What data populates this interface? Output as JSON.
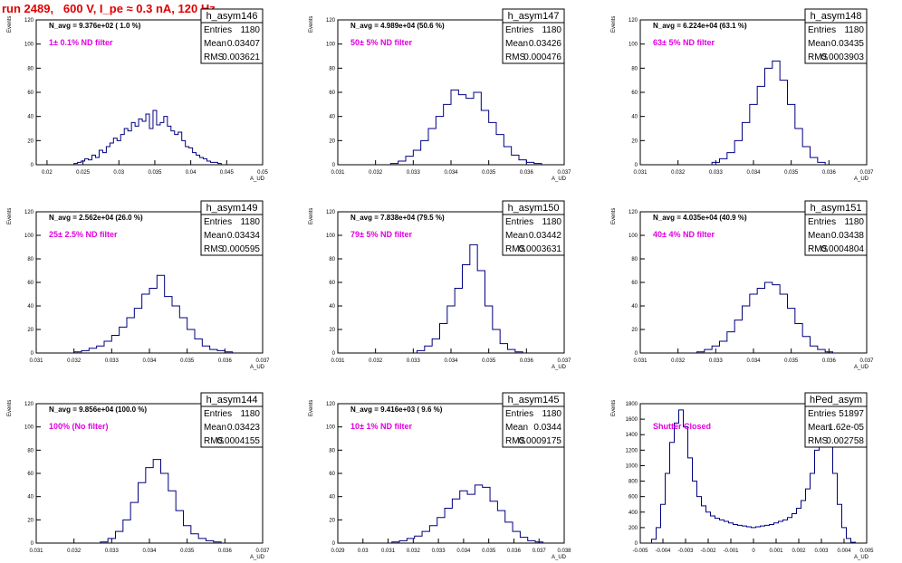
{
  "page_title": "run 2489,   600 V, I_pe ≈ 0.3 nA, 120 Hz",
  "colors": {
    "title": "#e00000",
    "histogram": "#000080",
    "annotation": "#e000e0",
    "frame": "#000000"
  },
  "chart_data": [
    {
      "type": "histogram",
      "name": "h_asym146",
      "navg": "N_avg = 9.376e+02 ( 1.0 %)",
      "filter": "1± 0.1% ND filter",
      "stats": {
        "entries_label": "Entries",
        "entries": "1180",
        "mean_label": "Mean",
        "mean": "0.03407",
        "rms_label": "RMS",
        "rms": "0.003621"
      },
      "xlim": [
        0.0185,
        0.05
      ],
      "ylim": [
        0,
        120
      ],
      "xlabel": "A_UD",
      "ylabel": "Events",
      "xticks": [
        "0.02",
        "0.025",
        "0.03",
        "0.035",
        "0.04",
        "0.045",
        "0.05"
      ],
      "yticks": [
        "0",
        "20",
        "40",
        "60",
        "80",
        "100",
        "120"
      ],
      "x": [
        0.024,
        0.0245,
        0.025,
        0.0255,
        0.026,
        0.0265,
        0.027,
        0.0275,
        0.028,
        0.0285,
        0.029,
        0.0295,
        0.03,
        0.0305,
        0.031,
        0.0315,
        0.032,
        0.0325,
        0.033,
        0.0335,
        0.034,
        0.0345,
        0.035,
        0.0355,
        0.036,
        0.0365,
        0.037,
        0.0375,
        0.038,
        0.0385,
        0.039,
        0.0395,
        0.04,
        0.0405,
        0.041,
        0.0415,
        0.042,
        0.0425,
        0.043,
        0.0435,
        0.044
      ],
      "y": [
        1,
        2,
        3,
        5,
        4,
        8,
        6,
        12,
        10,
        15,
        18,
        22,
        20,
        25,
        30,
        28,
        35,
        32,
        38,
        36,
        42,
        30,
        45,
        33,
        35,
        40,
        32,
        28,
        25,
        27,
        20,
        15,
        14,
        10,
        8,
        6,
        5,
        3,
        2,
        2,
        1
      ]
    },
    {
      "type": "histogram",
      "name": "h_asym147",
      "navg": "N_avg = 4.989e+04 (50.6 %)",
      "filter": "50± 5% ND filter",
      "stats": {
        "entries_label": "Entries",
        "entries": "1180",
        "mean_label": "Mean",
        "mean": "0.03426",
        "rms_label": "RMS",
        "rms": "0.000476"
      },
      "xlim": [
        0.031,
        0.037
      ],
      "ylim": [
        0,
        120
      ],
      "xlabel": "A_UD",
      "ylabel": "Events",
      "xticks": [
        "0.031",
        "0.032",
        "0.033",
        "0.034",
        "0.035",
        "0.036",
        "0.037"
      ],
      "yticks": [
        "0",
        "20",
        "40",
        "60",
        "80",
        "100",
        "120"
      ],
      "x": [
        0.0325,
        0.0327,
        0.0329,
        0.0331,
        0.0333,
        0.0335,
        0.0337,
        0.0339,
        0.0341,
        0.0343,
        0.0345,
        0.0347,
        0.0349,
        0.0351,
        0.0353,
        0.0355,
        0.0357,
        0.0359,
        0.0361,
        0.0363
      ],
      "y": [
        1,
        3,
        7,
        12,
        20,
        30,
        40,
        50,
        62,
        58,
        55,
        60,
        45,
        35,
        25,
        15,
        8,
        4,
        2,
        1
      ]
    },
    {
      "type": "histogram",
      "name": "h_asym148",
      "navg": "N_avg = 6.224e+04 (63.1 %)",
      "filter": "63± 5% ND filter",
      "stats": {
        "entries_label": "Entries",
        "entries": "1180",
        "mean_label": "Mean",
        "mean": "0.03435",
        "rms_label": "RMS",
        "rms": "0.0003903"
      },
      "xlim": [
        0.031,
        0.037
      ],
      "ylim": [
        0,
        120
      ],
      "xlabel": "A_UD",
      "ylabel": "Events",
      "xticks": [
        "0.031",
        "0.032",
        "0.033",
        "0.034",
        "0.035",
        "0.036",
        "0.037"
      ],
      "yticks": [
        "0",
        "20",
        "40",
        "60",
        "80",
        "100",
        "120"
      ],
      "x": [
        0.033,
        0.0332,
        0.0334,
        0.0336,
        0.0338,
        0.034,
        0.0342,
        0.0344,
        0.0346,
        0.0348,
        0.035,
        0.0352,
        0.0354,
        0.0356,
        0.0358
      ],
      "y": [
        2,
        5,
        10,
        20,
        35,
        50,
        65,
        80,
        86,
        70,
        50,
        30,
        15,
        6,
        2
      ]
    },
    {
      "type": "histogram",
      "name": "h_asym149",
      "navg": "N_avg = 2.562e+04 (26.0 %)",
      "filter": "25± 2.5% ND filter",
      "stats": {
        "entries_label": "Entries",
        "entries": "1180",
        "mean_label": "Mean",
        "mean": "0.03434",
        "rms_label": "RMS",
        "rms": "0.000595"
      },
      "xlim": [
        0.031,
        0.037
      ],
      "ylim": [
        0,
        120
      ],
      "xlabel": "A_UD",
      "ylabel": "Events",
      "xticks": [
        "0.031",
        "0.032",
        "0.033",
        "0.034",
        "0.035",
        "0.036",
        "0.037"
      ],
      "yticks": [
        "0",
        "20",
        "40",
        "60",
        "80",
        "100",
        "120"
      ],
      "x": [
        0.0321,
        0.0323,
        0.0325,
        0.0327,
        0.0329,
        0.0331,
        0.0333,
        0.0335,
        0.0337,
        0.0339,
        0.0341,
        0.0343,
        0.0345,
        0.0347,
        0.0349,
        0.0351,
        0.0353,
        0.0355,
        0.0357,
        0.0359,
        0.0361
      ],
      "y": [
        1,
        2,
        4,
        6,
        10,
        15,
        22,
        30,
        38,
        50,
        55,
        66,
        48,
        40,
        30,
        20,
        12,
        6,
        3,
        2,
        1
      ]
    },
    {
      "type": "histogram",
      "name": "h_asym150",
      "navg": "N_avg = 7.838e+04 (79.5 %)",
      "filter": "79± 5% ND filter",
      "stats": {
        "entries_label": "Entries",
        "entries": "1180",
        "mean_label": "Mean",
        "mean": "0.03442",
        "rms_label": "RMS",
        "rms": "0.0003631"
      },
      "xlim": [
        0.031,
        0.037
      ],
      "ylim": [
        0,
        120
      ],
      "xlabel": "A_UD",
      "ylabel": "Events",
      "xticks": [
        "0.031",
        "0.032",
        "0.033",
        "0.034",
        "0.035",
        "0.036",
        "0.037"
      ],
      "yticks": [
        "0",
        "20",
        "40",
        "60",
        "80",
        "100",
        "120"
      ],
      "x": [
        0.0332,
        0.0334,
        0.0336,
        0.0338,
        0.034,
        0.0342,
        0.0344,
        0.0346,
        0.0348,
        0.035,
        0.0352,
        0.0354,
        0.0356,
        0.0358
      ],
      "y": [
        2,
        6,
        12,
        25,
        40,
        55,
        75,
        92,
        70,
        40,
        20,
        8,
        3,
        1
      ]
    },
    {
      "type": "histogram",
      "name": "h_asym151",
      "navg": "N_avg = 4.035e+04 (40.9 %)",
      "filter": "40± 4% ND filter",
      "stats": {
        "entries_label": "Entries",
        "entries": "1180",
        "mean_label": "Mean",
        "mean": "0.03438",
        "rms_label": "RMS",
        "rms": "0.0004804"
      },
      "xlim": [
        0.031,
        0.037
      ],
      "ylim": [
        0,
        120
      ],
      "xlabel": "A_UD",
      "ylabel": "Events",
      "xticks": [
        "0.031",
        "0.032",
        "0.033",
        "0.034",
        "0.035",
        "0.036",
        "0.037"
      ],
      "yticks": [
        "0",
        "20",
        "40",
        "60",
        "80",
        "100",
        "120"
      ],
      "x": [
        0.0326,
        0.0328,
        0.033,
        0.0332,
        0.0334,
        0.0336,
        0.0338,
        0.034,
        0.0342,
        0.0344,
        0.0346,
        0.0348,
        0.035,
        0.0352,
        0.0354,
        0.0356,
        0.0358,
        0.036
      ],
      "y": [
        1,
        3,
        6,
        10,
        18,
        28,
        40,
        50,
        55,
        60,
        58,
        50,
        38,
        25,
        14,
        6,
        3,
        1
      ]
    },
    {
      "type": "histogram",
      "name": "h_asym144",
      "navg": "N_avg = 9.856e+04 (100.0 %)",
      "filter": "100% (No filter)",
      "stats": {
        "entries_label": "Entries",
        "entries": "1180",
        "mean_label": "Mean",
        "mean": "0.03423",
        "rms_label": "RMS",
        "rms": "0.0004155"
      },
      "xlim": [
        0.031,
        0.037
      ],
      "ylim": [
        0,
        120
      ],
      "xlabel": "A_UD",
      "ylabel": "Events",
      "xticks": [
        "0.031",
        "0.032",
        "0.033",
        "0.034",
        "0.035",
        "0.036",
        "0.037"
      ],
      "yticks": [
        "0",
        "20",
        "40",
        "60",
        "80",
        "100",
        "120"
      ],
      "x": [
        0.0328,
        0.033,
        0.0332,
        0.0334,
        0.0336,
        0.0338,
        0.034,
        0.0342,
        0.0344,
        0.0346,
        0.0348,
        0.035,
        0.0352,
        0.0354,
        0.0356,
        0.0358
      ],
      "y": [
        1,
        4,
        10,
        20,
        35,
        52,
        65,
        72,
        60,
        45,
        28,
        15,
        8,
        4,
        2,
        1
      ]
    },
    {
      "type": "histogram",
      "name": "h_asym145",
      "navg": "N_avg = 9.416e+03 ( 9.6 %)",
      "filter": "10± 1% ND filter",
      "stats": {
        "entries_label": "Entries",
        "entries": "1180",
        "mean_label": "Mean",
        "mean": "0.0344",
        "rms_label": "RMS",
        "rms": "0.0009175"
      },
      "xlim": [
        0.029,
        0.038
      ],
      "ylim": [
        0,
        120
      ],
      "xlabel": "A_UD",
      "ylabel": "Events",
      "xticks": [
        "0.029",
        "0.03",
        "0.031",
        "0.032",
        "0.033",
        "0.034",
        "0.035",
        "0.036",
        "0.037",
        "0.038"
      ],
      "yticks": [
        "0",
        "20",
        "40",
        "60",
        "80",
        "100",
        "120"
      ],
      "x": [
        0.0313,
        0.0316,
        0.0319,
        0.0322,
        0.0325,
        0.0328,
        0.0331,
        0.0334,
        0.0337,
        0.034,
        0.0343,
        0.0346,
        0.0349,
        0.0352,
        0.0355,
        0.0358,
        0.0361,
        0.0364,
        0.0367,
        0.037
      ],
      "y": [
        1,
        2,
        4,
        6,
        10,
        15,
        22,
        30,
        38,
        45,
        42,
        50,
        48,
        36,
        28,
        18,
        10,
        5,
        2,
        1
      ]
    },
    {
      "type": "histogram",
      "name": "hPed_asym",
      "navg": "",
      "filter": "Shutter Closed",
      "stats": {
        "entries_label": "Entries",
        "entries": "51897",
        "mean_label": "Mean",
        "mean": "1.62e-05",
        "rms_label": "RMS",
        "rms": "0.002758"
      },
      "xlim": [
        -0.005,
        0.005
      ],
      "ylim": [
        0,
        1800
      ],
      "xlabel": "A_UD",
      "ylabel": "Events",
      "xticks": [
        "-0.005",
        "-0.004",
        "-0.003",
        "-0.002",
        "-0.001",
        "0",
        "0.001",
        "0.002",
        "0.003",
        "0.004",
        "0.005"
      ],
      "yticks": [
        "0",
        "200",
        "400",
        "600",
        "800",
        "1000",
        "1200",
        "1400",
        "1600",
        "1800"
      ],
      "x": [
        -0.0044,
        -0.0042,
        -0.004,
        -0.0038,
        -0.0036,
        -0.0034,
        -0.0032,
        -0.003,
        -0.0028,
        -0.0026,
        -0.0024,
        -0.0022,
        -0.002,
        -0.0018,
        -0.0016,
        -0.0014,
        -0.0012,
        -0.001,
        -0.0008,
        -0.0006,
        -0.0004,
        -0.0002,
        0.0,
        0.0002,
        0.0004,
        0.0006,
        0.0008,
        0.001,
        0.0012,
        0.0014,
        0.0016,
        0.0018,
        0.002,
        0.0022,
        0.0024,
        0.0026,
        0.0028,
        0.003,
        0.0032,
        0.0034,
        0.0036,
        0.0038,
        0.004,
        0.0042,
        0.0044
      ],
      "y": [
        50,
        200,
        500,
        900,
        1300,
        1550,
        1720,
        1500,
        1100,
        800,
        600,
        480,
        400,
        350,
        320,
        300,
        280,
        260,
        240,
        230,
        220,
        210,
        200,
        210,
        220,
        230,
        240,
        260,
        280,
        300,
        330,
        380,
        450,
        550,
        700,
        900,
        1200,
        1450,
        1600,
        1300,
        900,
        500,
        200,
        60,
        10
      ]
    }
  ]
}
